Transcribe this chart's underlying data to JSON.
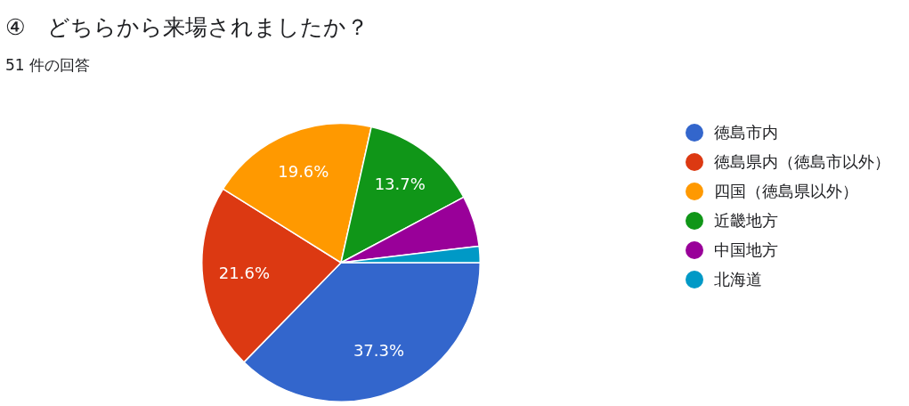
{
  "chart_data": {
    "type": "pie",
    "title": "④　どちらから来場されましたか？",
    "subtitle": "51 件の回答",
    "categories": [
      "徳島市内",
      "徳島県内（徳島市以外）",
      "四国（徳島県以外）",
      "近畿地方",
      "中国地方",
      "北海道"
    ],
    "values": [
      37.3,
      21.6,
      19.6,
      13.7,
      5.9,
      1.9
    ],
    "value_labels": [
      "37.3%",
      "21.6%",
      "19.6%",
      "13.7%",
      null,
      null
    ],
    "colors": [
      "#3366cc",
      "#dc3912",
      "#ff9900",
      "#109618",
      "#990099",
      "#0099c6"
    ],
    "legend": "right"
  }
}
